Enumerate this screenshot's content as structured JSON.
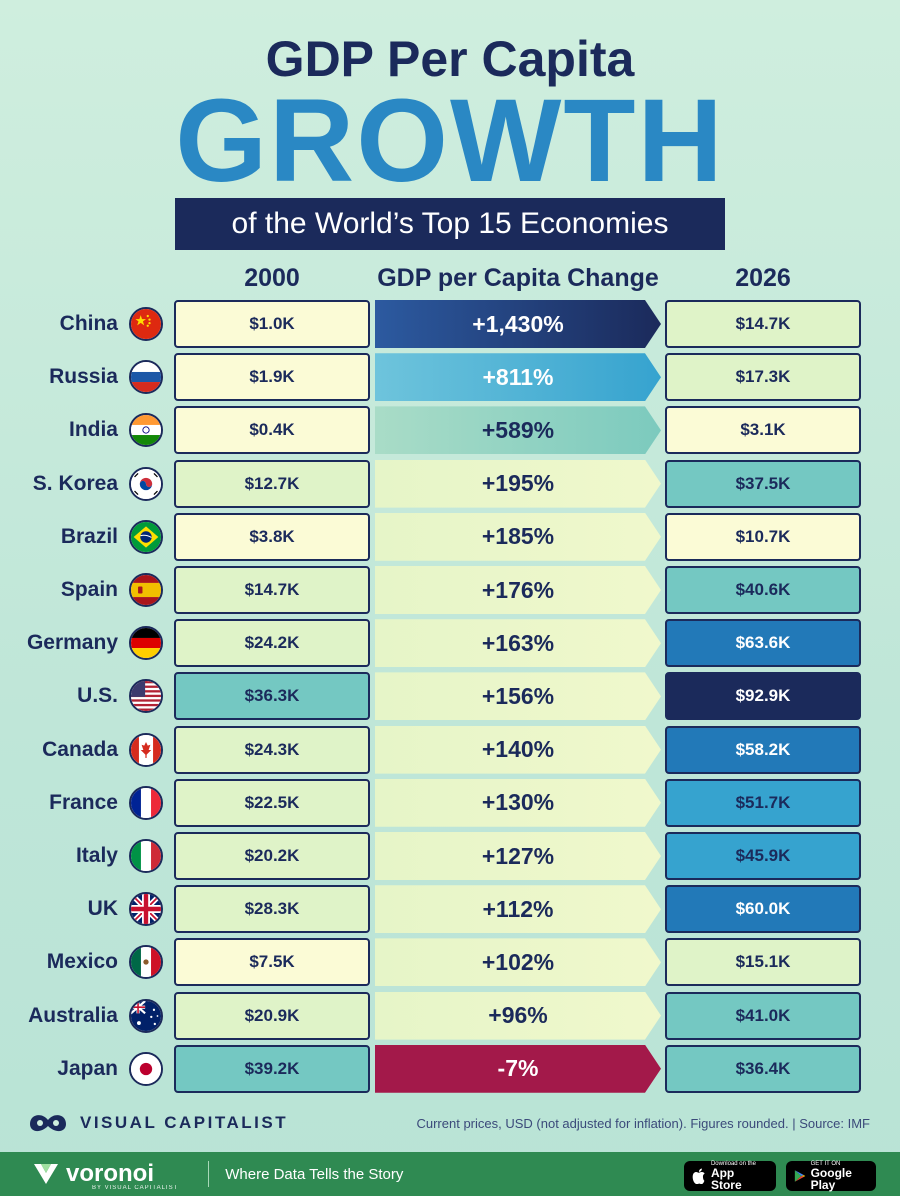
{
  "header": {
    "title_line1": "GDP Per Capita",
    "title_line2": "GROWTH",
    "subtitle": "of the World’s Top 15 Economies"
  },
  "chart_data": {
    "type": "table",
    "columns": [
      "2000",
      "GDP per Capita Change",
      "2026"
    ],
    "rows": [
      {
        "country": "China",
        "y2000": "$1.0K",
        "change": "+1,430%",
        "y2026": "$14.7K"
      },
      {
        "country": "Russia",
        "y2000": "$1.9K",
        "change": "+811%",
        "y2026": "$17.3K"
      },
      {
        "country": "India",
        "y2000": "$0.4K",
        "change": "+589%",
        "y2026": "$3.1K"
      },
      {
        "country": "S. Korea",
        "y2000": "$12.7K",
        "change": "+195%",
        "y2026": "$37.5K"
      },
      {
        "country": "Brazil",
        "y2000": "$3.8K",
        "change": "+185%",
        "y2026": "$10.7K"
      },
      {
        "country": "Spain",
        "y2000": "$14.7K",
        "change": "+176%",
        "y2026": "$40.6K"
      },
      {
        "country": "Germany",
        "y2000": "$24.2K",
        "change": "+163%",
        "y2026": "$63.6K"
      },
      {
        "country": "U.S.",
        "y2000": "$36.3K",
        "change": "+156%",
        "y2026": "$92.9K"
      },
      {
        "country": "Canada",
        "y2000": "$24.3K",
        "change": "+140%",
        "y2026": "$58.2K"
      },
      {
        "country": "France",
        "y2000": "$22.5K",
        "change": "+130%",
        "y2026": "$51.7K"
      },
      {
        "country": "Italy",
        "y2000": "$20.2K",
        "change": "+127%",
        "y2026": "$45.9K"
      },
      {
        "country": "UK",
        "y2000": "$28.3K",
        "change": "+112%",
        "y2026": "$60.0K"
      },
      {
        "country": "Mexico",
        "y2000": "$7.5K",
        "change": "+102%",
        "y2026": "$15.1K"
      },
      {
        "country": "Australia",
        "y2000": "$20.9K",
        "change": "+96%",
        "y2026": "$41.0K"
      },
      {
        "country": "Japan",
        "y2000": "$39.2K",
        "change": "-7%",
        "y2026": "$36.4K"
      }
    ],
    "values_2000_k": [
      1.0,
      1.9,
      0.4,
      12.7,
      3.8,
      14.7,
      24.2,
      36.3,
      24.3,
      22.5,
      20.2,
      28.3,
      7.5,
      20.9,
      39.2
    ],
    "change_pct": [
      1430,
      811,
      589,
      195,
      185,
      176,
      163,
      156,
      140,
      130,
      127,
      112,
      102,
      96,
      -7
    ],
    "values_2026_k": [
      14.7,
      17.3,
      3.1,
      37.5,
      10.7,
      40.6,
      63.6,
      92.9,
      58.2,
      51.7,
      45.9,
      60.0,
      15.1,
      41.0,
      36.4
    ],
    "colors": {
      "navy": "#1b2a5b",
      "blue_dark": "#2279b8",
      "blue_mid": "#36a3cf",
      "teal": "#74c8c2",
      "green_pale": "#dff3c8",
      "cream": "#fbfbd6",
      "negative": "#a3194a"
    }
  },
  "footer": {
    "brand": "VISUAL CAPITALIST",
    "note": "Current prices, USD (not adjusted for inflation). Figures rounded. | Source: IMF",
    "voronoi": "voronoi",
    "voronoi_sub": "BY VISUAL CAPITALIST",
    "tagline": "Where Data Tells the Story",
    "appstore_small": "Download on the",
    "appstore_big": "App Store",
    "googleplay_small": "GET IT ON",
    "googleplay_big": "Google Play"
  }
}
